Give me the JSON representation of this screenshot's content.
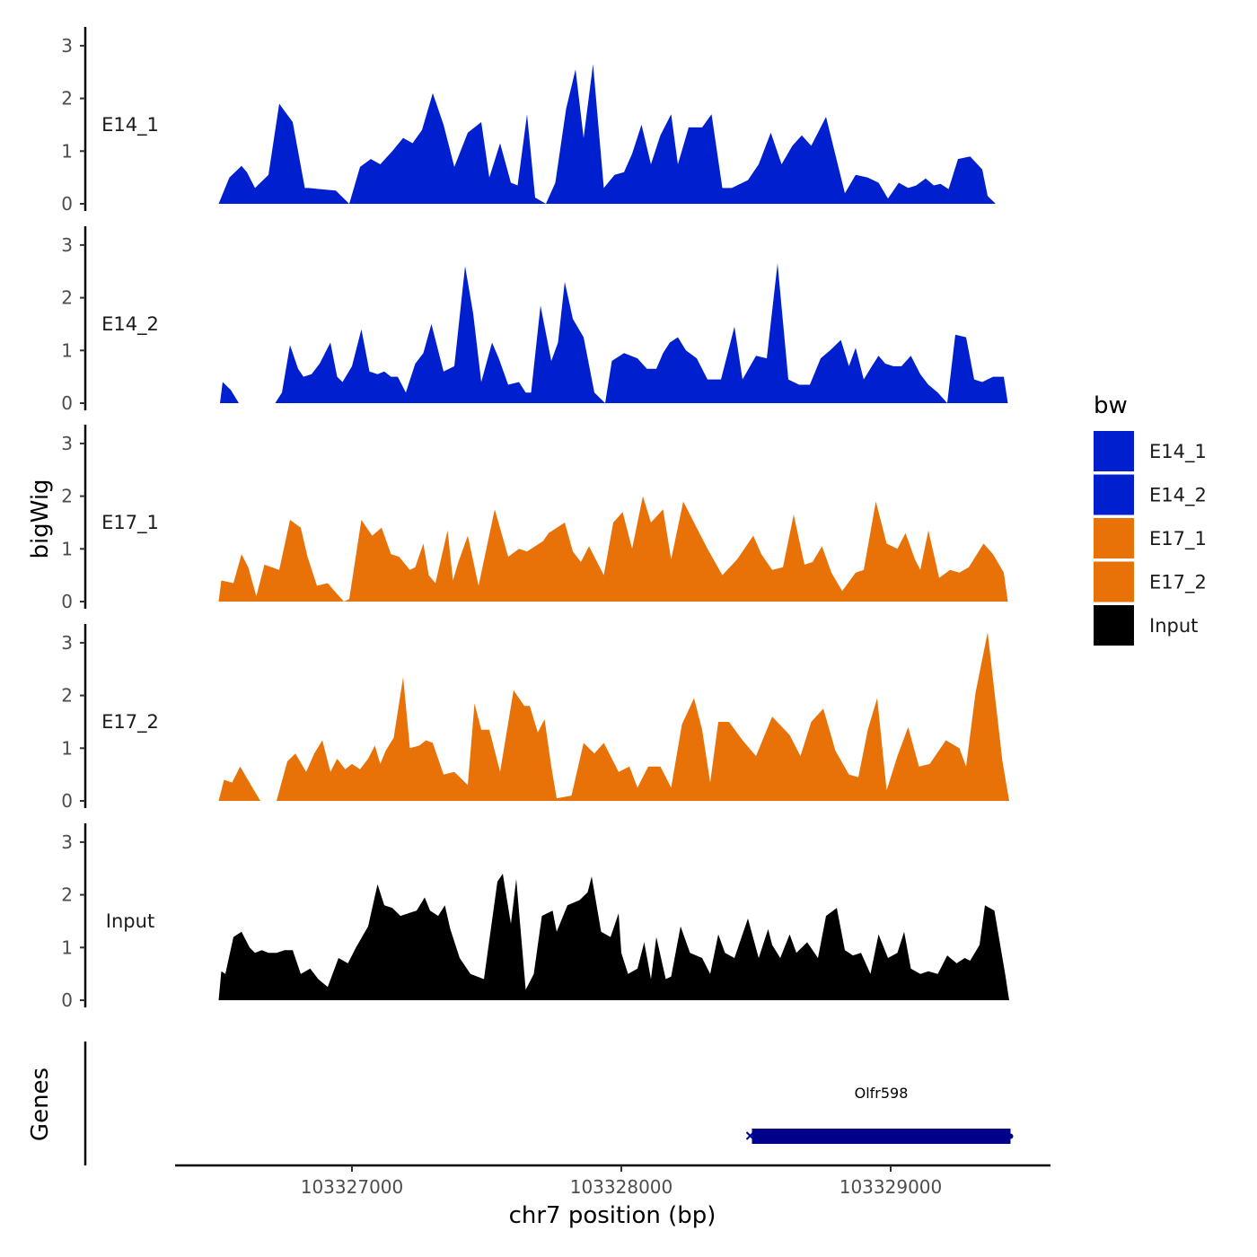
{
  "chart_data": {
    "type": "area",
    "title": "",
    "ylabel": "bigWig",
    "xlabel": "chr7 position (bp)",
    "genes_label": "Genes",
    "xlim": [
      103326350,
      103329600
    ],
    "ylim": [
      0,
      3.3
    ],
    "yticks": [
      0,
      1,
      2,
      3
    ],
    "ytick_labels": [
      "0",
      "1",
      "2",
      "3"
    ],
    "xticks": [
      103327000,
      103328000,
      103329000
    ],
    "xtick_labels": [
      "103327000",
      "103328000",
      "103329000"
    ],
    "legend": {
      "title": "bw",
      "position": "right",
      "entries": [
        {
          "label": "E14_1",
          "color": "#0020d0"
        },
        {
          "label": "E14_2",
          "color": "#0020d0"
        },
        {
          "label": "E17_1",
          "color": "#e87208"
        },
        {
          "label": "E17_2",
          "color": "#e87208"
        },
        {
          "label": "Input",
          "color": "#000000"
        }
      ]
    },
    "tracks": [
      {
        "name": "E14_1",
        "color": "#0020d0",
        "x": [
          103326505,
          103326545,
          103326590,
          103326610,
          103326640,
          103326690,
          103326730,
          103326780,
          103326825,
          103326840,
          103326880,
          103326940,
          103326990,
          103327030,
          103327070,
          103327105,
          103327150,
          103327190,
          103327225,
          103327260,
          103327300,
          103327340,
          103327380,
          103327430,
          103327480,
          103327510,
          103327550,
          103327590,
          103327615,
          103327650,
          103327680,
          103327720,
          103327755,
          103327795,
          103327830,
          103327860,
          103327895,
          103327935,
          103327975,
          103328010,
          103328040,
          103328075,
          103328110,
          103328145,
          103328185,
          103328210,
          103328250,
          103328300,
          103328335,
          103328375,
          103328410,
          103328470,
          103328510,
          103328555,
          103328595,
          103328635,
          103328670,
          103328705,
          103328760,
          103328830,
          103328870,
          103328915,
          103328955,
          103328990,
          103329030,
          103329065,
          103329095,
          103329130,
          103329160,
          103329185,
          103329215,
          103329250,
          103329295,
          103329340,
          103329360,
          103329390,
          103329410,
          103329430
        ],
        "values": [
          0,
          0.5,
          0.72,
          0.6,
          0.3,
          0.55,
          1.9,
          1.55,
          0.3,
          0.3,
          0.28,
          0.25,
          0,
          0.7,
          0.85,
          0.75,
          1.0,
          1.25,
          1.15,
          1.4,
          2.1,
          1.5,
          0.7,
          1.35,
          1.55,
          0.5,
          1.15,
          0.4,
          0.35,
          1.7,
          0.12,
          0,
          0.4,
          1.8,
          2.55,
          1.25,
          2.65,
          0.3,
          0.55,
          0.6,
          0.95,
          1.5,
          0.75,
          1.3,
          1.7,
          0.75,
          1.45,
          1.45,
          1.7,
          0.3,
          0.3,
          0.45,
          0.75,
          1.35,
          0.75,
          1.1,
          1.3,
          1.1,
          1.65,
          0.2,
          0.55,
          0.5,
          0.4,
          0.1,
          0.4,
          0.3,
          0.35,
          0.48,
          0.35,
          0.38,
          0.28,
          0.85,
          0.9,
          0.65,
          0.15,
          0,
          0,
          0
        ]
      },
      {
        "name": "E14_2",
        "color": "#0020d0",
        "x": [
          103326510,
          103326520,
          103326550,
          103326580,
          103326715,
          103326740,
          103326770,
          103326800,
          103326820,
          103326850,
          103326880,
          103326920,
          103326945,
          103326965,
          103327000,
          103327035,
          103327065,
          103327095,
          103327120,
          103327145,
          103327170,
          103327200,
          103327235,
          103327265,
          103327295,
          103327340,
          103327380,
          103327420,
          103327450,
          103327480,
          103327520,
          103327545,
          103327580,
          103327620,
          103327645,
          103327665,
          103327700,
          103327740,
          103327765,
          103327790,
          103327820,
          103327860,
          103327900,
          103327940,
          103327965,
          103328010,
          103328060,
          103328095,
          103328130,
          103328155,
          103328180,
          103328210,
          103328240,
          103328280,
          103328320,
          103328370,
          103328420,
          103328450,
          103328500,
          103328540,
          103328580,
          103328620,
          103328660,
          103328700,
          103328740,
          103328775,
          103328815,
          103328845,
          103328870,
          103328900,
          103328930,
          103328955,
          103328980,
          103329010,
          103329040,
          103329075,
          103329110,
          103329140,
          103329175,
          103329210,
          103329240,
          103329280,
          103329310,
          103329340,
          103329380,
          103329420,
          103329435
        ],
        "values": [
          0,
          0.4,
          0.25,
          0,
          0,
          0.2,
          1.1,
          0.65,
          0.5,
          0.55,
          0.75,
          1.15,
          0.5,
          0.4,
          0.7,
          1.4,
          0.6,
          0.55,
          0.6,
          0.5,
          0.5,
          0.2,
          0.75,
          0.95,
          1.5,
          0.6,
          0.7,
          2.6,
          1.7,
          0.4,
          1.15,
          0.85,
          0.35,
          0.4,
          0.2,
          0.2,
          1.85,
          0.8,
          1.15,
          2.3,
          1.6,
          1.25,
          0.2,
          0,
          0.8,
          0.95,
          0.85,
          0.65,
          0.65,
          0.95,
          1.15,
          1.25,
          1.0,
          0.85,
          0.45,
          0.45,
          1.45,
          0.45,
          0.9,
          0.85,
          2.65,
          0.45,
          0.35,
          0.35,
          0.85,
          1.0,
          1.2,
          0.7,
          1.05,
          0.45,
          0.7,
          0.9,
          0.75,
          0.7,
          0.7,
          0.9,
          0.55,
          0.35,
          0.2,
          0,
          1.3,
          1.25,
          0.45,
          0.4,
          0.5,
          0.5,
          0
        ]
      },
      {
        "name": "E17_1",
        "color": "#e87208",
        "x": [
          103326505,
          103326515,
          103326560,
          103326590,
          103326615,
          103326645,
          103326675,
          103326730,
          103326770,
          103326810,
          103326835,
          103326870,
          103326910,
          103326935,
          103326970,
          103326990,
          103327035,
          103327075,
          103327110,
          103327145,
          103327175,
          103327215,
          103327235,
          103327265,
          103327285,
          103327310,
          103327355,
          103327375,
          103327395,
          103327430,
          103327470,
          103327530,
          103327580,
          103327620,
          103327650,
          103327710,
          103327730,
          103327790,
          103327820,
          103327850,
          103327880,
          103327935,
          103327970,
          103328005,
          103328040,
          103328080,
          103328110,
          103328155,
          103328185,
          103328230,
          103328290,
          103328320,
          103328375,
          103328430,
          103328490,
          103328520,
          103328560,
          103328600,
          103328640,
          103328680,
          103328710,
          103328745,
          103328780,
          103328820,
          103328870,
          103328900,
          103328945,
          103328985,
          103329025,
          103329055,
          103329090,
          103329110,
          103329140,
          103329180,
          103329220,
          103329255,
          103329290,
          103329345,
          103329380,
          103329420,
          103329435
        ],
        "values": [
          0,
          0.4,
          0.35,
          0.9,
          0.65,
          0.1,
          0.7,
          0.6,
          1.55,
          1.4,
          0.85,
          0.3,
          0.35,
          0.2,
          0,
          0.05,
          1.55,
          1.25,
          1.4,
          0.9,
          0.85,
          0.6,
          0.65,
          1.1,
          0.5,
          0.35,
          1.35,
          0.4,
          0.75,
          1.25,
          0.3,
          1.75,
          0.85,
          1.0,
          0.95,
          1.15,
          1.3,
          1.5,
          0.95,
          0.75,
          1.05,
          0.5,
          1.5,
          1.7,
          1.0,
          2.0,
          1.5,
          1.75,
          0.8,
          1.9,
          1.3,
          1.0,
          0.5,
          0.8,
          1.25,
          0.9,
          0.6,
          0.65,
          1.65,
          0.7,
          0.75,
          1.05,
          0.55,
          0.2,
          0.55,
          0.6,
          1.9,
          1.1,
          1.0,
          1.3,
          0.8,
          0.6,
          1.35,
          0.45,
          0.6,
          0.55,
          0.65,
          1.1,
          0.9,
          0.55,
          0
        ]
      },
      {
        "name": "E17_2",
        "color": "#e87208",
        "x": [
          103326505,
          103326525,
          103326555,
          103326585,
          103326625,
          103326660,
          103326720,
          103326760,
          103326790,
          103326830,
          103326860,
          103326890,
          103326920,
          103326945,
          103326975,
          103327000,
          103327030,
          103327060,
          103327085,
          103327105,
          103327125,
          103327155,
          103327190,
          103327215,
          103327250,
          103327275,
          103327300,
          103327340,
          103327380,
          103327430,
          103327455,
          103327480,
          103327510,
          103327550,
          103327600,
          103327640,
          103327660,
          103327690,
          103327715,
          103327740,
          103327760,
          103327815,
          103327860,
          103327900,
          103327935,
          103327990,
          103328030,
          103328060,
          103328100,
          103328145,
          103328185,
          103328225,
          103328270,
          103328300,
          103328330,
          103328360,
          103328400,
          103328450,
          103328475,
          103328500,
          103328560,
          103328625,
          103328665,
          103328705,
          103328750,
          103328795,
          103328845,
          103328880,
          103328915,
          103328950,
          103328985,
          103329025,
          103329065,
          103329105,
          103329145,
          103329205,
          103329255,
          103329280,
          103329315,
          103329360,
          103329415,
          103329440
        ],
        "values": [
          0,
          0.4,
          0.35,
          0.65,
          0.3,
          0,
          0,
          0.75,
          0.9,
          0.55,
          0.9,
          1.15,
          0.55,
          0.8,
          0.6,
          0.7,
          0.6,
          0.8,
          1.05,
          0.7,
          0.95,
          1.2,
          2.35,
          1.0,
          1.05,
          1.15,
          1.1,
          0.5,
          0.55,
          0.3,
          1.85,
          1.35,
          1.35,
          0.55,
          2.1,
          1.8,
          1.8,
          1.3,
          1.55,
          0.65,
          0.05,
          0.1,
          1.1,
          0.9,
          1.1,
          0.55,
          0.65,
          0.25,
          0.65,
          0.65,
          0.25,
          1.45,
          1.95,
          1.35,
          0.35,
          1.5,
          1.5,
          1.15,
          1.0,
          0.85,
          1.6,
          1.25,
          0.85,
          1.5,
          1.75,
          0.95,
          0.5,
          0.45,
          1.35,
          1.95,
          0.2,
          0.85,
          1.4,
          0.65,
          0.7,
          1.15,
          1.0,
          0.65,
          2.05,
          3.2,
          0.75,
          0
        ]
      },
      {
        "name": "Input",
        "color": "#000000",
        "x": [
          103326505,
          103326515,
          103326530,
          103326560,
          103326590,
          103326620,
          103326640,
          103326665,
          103326690,
          103326720,
          103326750,
          103326780,
          103326810,
          103326845,
          103326875,
          103326910,
          103326950,
          103326985,
          103327015,
          103327060,
          103327095,
          103327120,
          103327150,
          103327180,
          103327210,
          103327240,
          103327270,
          103327290,
          103327320,
          103327345,
          103327365,
          103327400,
          103327440,
          103327490,
          103327540,
          103327560,
          103327590,
          103327610,
          103327645,
          103327675,
          103327705,
          103327745,
          103327760,
          103327800,
          103327845,
          103327875,
          103327890,
          103327925,
          103327960,
          103327990,
          103328000,
          103328025,
          103328060,
          103328085,
          103328110,
          103328130,
          103328165,
          103328185,
          103328220,
          103328255,
          103328300,
          103328330,
          103328360,
          103328385,
          103328420,
          103328470,
          103328510,
          103328545,
          103328560,
          103328590,
          103328625,
          103328650,
          103328690,
          103328730,
          103328760,
          103328800,
          103328830,
          103328860,
          103328890,
          103328925,
          103328955,
          103328990,
          103329025,
          103329050,
          103329075,
          103329110,
          103329140,
          103329175,
          103329210,
          103329245,
          103329275,
          103329295,
          103329330,
          103329350,
          103329385,
          103329425,
          103329440
        ],
        "values": [
          0,
          0.55,
          0.5,
          1.2,
          1.3,
          1.0,
          0.9,
          0.95,
          0.9,
          0.9,
          0.95,
          0.95,
          0.5,
          0.6,
          0.4,
          0.25,
          0.8,
          0.7,
          1.0,
          1.4,
          2.2,
          1.8,
          1.75,
          1.6,
          1.65,
          1.7,
          1.95,
          1.7,
          1.6,
          1.8,
          1.35,
          0.8,
          0.5,
          0.4,
          2.25,
          2.4,
          1.45,
          2.3,
          0.2,
          0.5,
          1.6,
          1.7,
          1.3,
          1.8,
          1.9,
          2.05,
          2.35,
          1.3,
          1.2,
          1.65,
          0.9,
          0.5,
          0.6,
          1.1,
          0.4,
          1.2,
          0.4,
          0.45,
          1.4,
          0.9,
          0.8,
          0.5,
          1.25,
          0.9,
          0.8,
          1.55,
          0.8,
          1.35,
          1.05,
          0.8,
          1.25,
          0.9,
          1.1,
          0.8,
          1.6,
          1.75,
          0.95,
          0.85,
          0.9,
          0.5,
          1.25,
          0.8,
          0.9,
          1.3,
          0.6,
          0.5,
          0.55,
          0.5,
          0.85,
          0.7,
          0.8,
          0.75,
          1.05,
          1.8,
          1.7,
          0.5,
          0
        ]
      }
    ],
    "genes": [
      {
        "name": "Olfr598",
        "start": 103328485,
        "end": 103329445,
        "strand": "-",
        "color": "#00008b"
      }
    ]
  }
}
